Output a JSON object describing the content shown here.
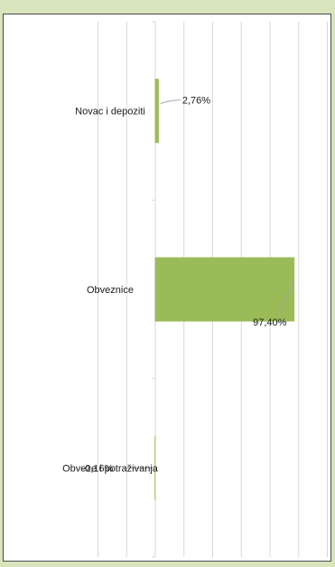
{
  "chart_data": {
    "type": "bar",
    "orientation": "horizontal",
    "categories": [
      "Novac i depoziti",
      "Obveznice",
      "Obveze i potraživanja"
    ],
    "values": [
      2.76,
      97.4,
      -0.16
    ],
    "data_labels": [
      "2,76%",
      "97,40%",
      "-0,16%"
    ],
    "xlim": [
      -40,
      120
    ],
    "grid": true,
    "legend": "none",
    "bar_color": "#9bbb59"
  }
}
